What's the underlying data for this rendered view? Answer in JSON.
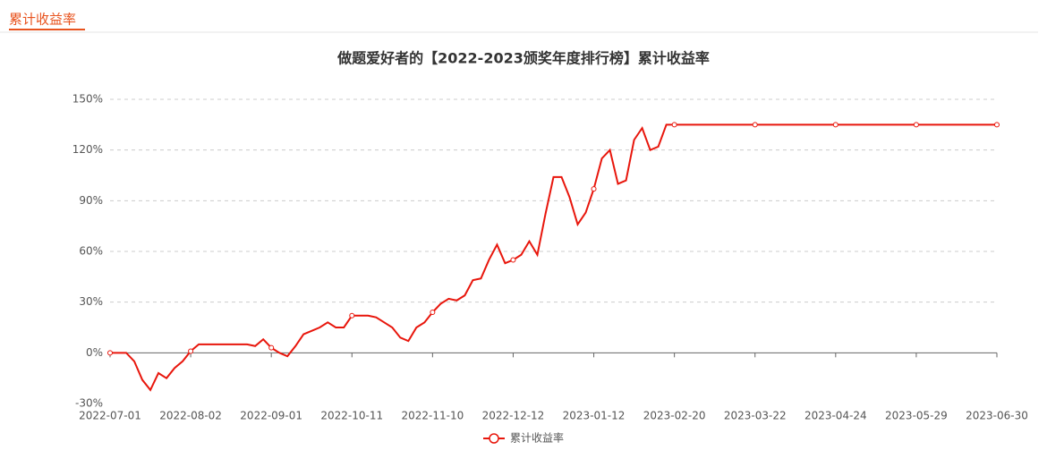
{
  "header": {
    "tab": "累计收益率"
  },
  "chart_data": {
    "type": "line",
    "title": "做题爱好者的【2022-2023颁奖年度排行榜】累计收益率",
    "categories": [
      "2022-07-01",
      null,
      null,
      null,
      null,
      null,
      null,
      null,
      null,
      null,
      "2022-08-02",
      null,
      null,
      null,
      null,
      null,
      null,
      null,
      null,
      null,
      "2022-09-01",
      null,
      null,
      null,
      null,
      null,
      null,
      null,
      null,
      null,
      "2022-10-11",
      null,
      null,
      null,
      null,
      null,
      null,
      null,
      null,
      null,
      "2022-11-10",
      null,
      null,
      null,
      null,
      null,
      null,
      null,
      null,
      null,
      "2022-12-12",
      null,
      null,
      null,
      null,
      null,
      null,
      null,
      null,
      null,
      "2023-01-12",
      null,
      null,
      null,
      null,
      null,
      null,
      null,
      null,
      null,
      "2023-02-20",
      null,
      null,
      null,
      null,
      null,
      null,
      null,
      null,
      null,
      "2023-03-22",
      null,
      null,
      null,
      null,
      null,
      null,
      null,
      null,
      null,
      "2023-04-24",
      null,
      null,
      null,
      null,
      null,
      null,
      null,
      null,
      null,
      "2023-05-29",
      null,
      null,
      null,
      null,
      null,
      null,
      null,
      null,
      null,
      "2023-06-30"
    ],
    "series": [
      {
        "name": "累计收益率",
        "color": "#e8160c",
        "values": [
          0,
          0,
          0,
          -5,
          -16,
          -22,
          -12,
          -15,
          -9,
          -5,
          1,
          5,
          5,
          5,
          5,
          5,
          5,
          5,
          4,
          8,
          3,
          0,
          -2,
          4,
          11,
          13,
          15,
          18,
          15,
          15,
          22,
          22,
          22,
          21,
          18,
          15,
          9,
          7,
          15,
          18,
          24,
          29,
          32,
          31,
          34,
          43,
          44,
          55,
          64,
          53,
          55,
          58,
          66,
          58,
          82,
          104,
          104,
          92,
          76,
          83,
          97,
          115,
          120,
          100,
          102,
          126,
          133,
          120,
          122,
          135,
          135,
          135,
          135,
          135,
          135,
          135,
          135,
          135,
          135,
          135,
          135,
          135,
          135,
          135,
          135,
          135,
          135,
          135,
          135,
          135,
          135,
          135,
          135,
          135,
          135,
          135,
          135,
          135,
          135,
          135,
          135,
          135,
          135,
          135,
          135,
          135,
          135,
          135,
          135,
          135,
          135
        ]
      }
    ],
    "ylim": [
      -30,
      150
    ],
    "yticks": [
      {
        "value": -30,
        "label": "-30%"
      },
      {
        "value": 0,
        "label": "0%"
      },
      {
        "value": 30,
        "label": "30%"
      },
      {
        "value": 60,
        "label": "60%"
      },
      {
        "value": 90,
        "label": "90%"
      },
      {
        "value": 120,
        "label": "120%"
      },
      {
        "value": 150,
        "label": "150%"
      }
    ],
    "grid": true,
    "legend": "bottom"
  }
}
